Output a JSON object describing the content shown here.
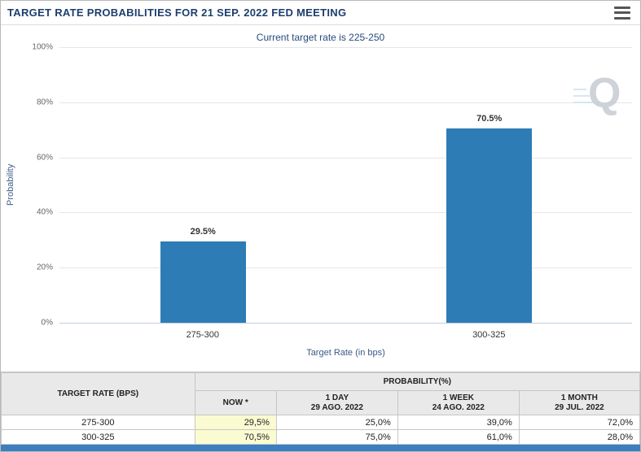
{
  "header": {
    "title": "TARGET RATE PROBABILITIES FOR 21 SEP. 2022 FED MEETING"
  },
  "chart_data": {
    "type": "bar",
    "subtitle": "Current target rate is 225-250",
    "categories": [
      "275-300",
      "300-325"
    ],
    "values": [
      29.5,
      70.5
    ],
    "value_labels": [
      "29.5%",
      "70.5%"
    ],
    "xlabel": "Target Rate (in bps)",
    "ylabel": "Probability",
    "ylim": [
      0,
      100
    ],
    "yticks": [
      "0%",
      "20%",
      "40%",
      "60%",
      "80%",
      "100%"
    ],
    "grid": "horizontal",
    "legend": "none",
    "bar_color": "#2d7cb5"
  },
  "icons": {
    "menu": "hamburger-icon",
    "watermark": "q-logo-watermark"
  },
  "colors": {
    "title_navy": "#1d3e6e",
    "subtitle_navy": "#27497b",
    "bar_blue": "#2d7cb5",
    "now_highlight_yellow": "#fbfbd2",
    "table_header_gray": "#e9e9e9",
    "bottom_strip_blue": "#3c7fc0"
  },
  "table": {
    "rate_header": "TARGET RATE (BPS)",
    "group_header": "PROBABILITY(%)",
    "columns": [
      {
        "line1": "NOW *",
        "line2": ""
      },
      {
        "line1": "1 DAY",
        "line2": "29 AGO. 2022"
      },
      {
        "line1": "1 WEEK",
        "line2": "24 AGO. 2022"
      },
      {
        "line1": "1 MONTH",
        "line2": "29 JUL. 2022"
      }
    ],
    "rows": [
      {
        "rate": "275-300",
        "values": [
          "29,5%",
          "25,0%",
          "39,0%",
          "72,0%"
        ]
      },
      {
        "rate": "300-325",
        "values": [
          "70,5%",
          "75,0%",
          "61,0%",
          "28,0%"
        ]
      }
    ]
  }
}
